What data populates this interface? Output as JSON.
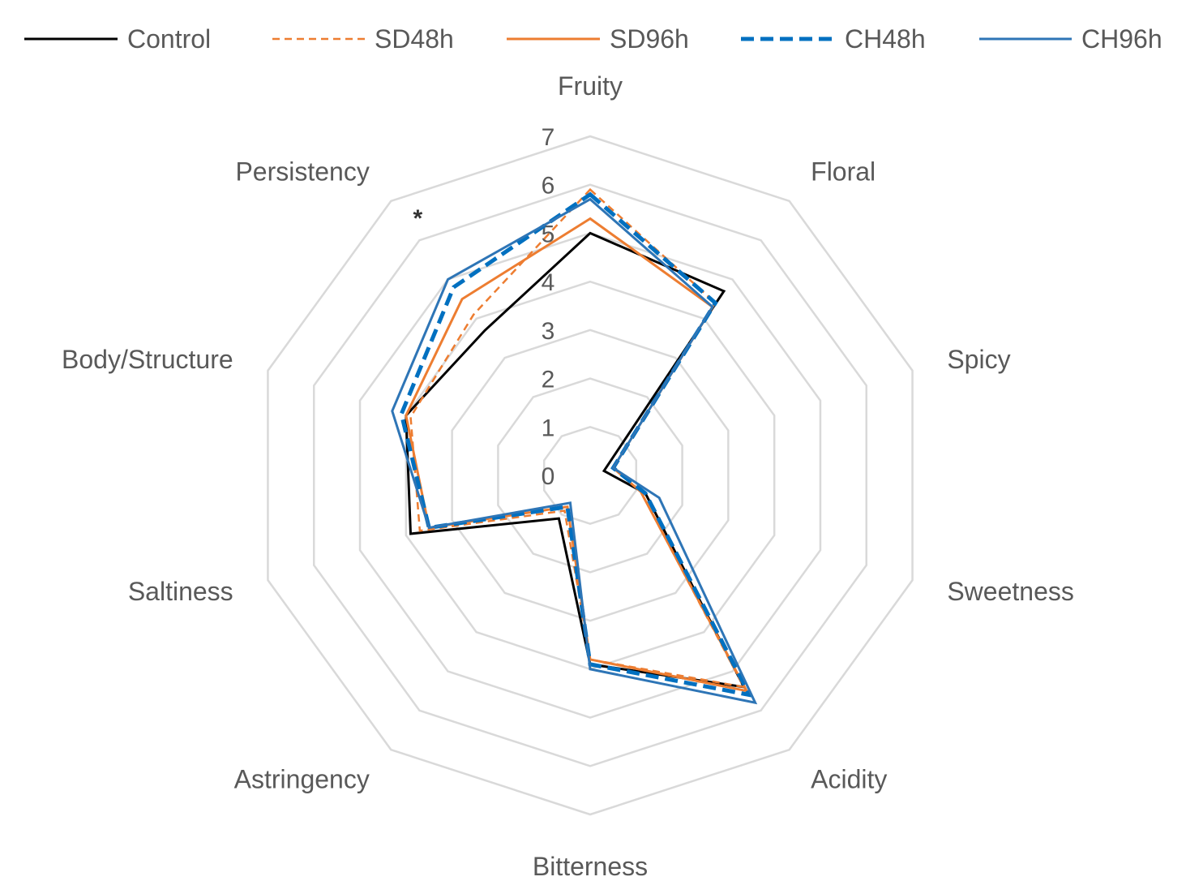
{
  "chart_data": {
    "type": "radar",
    "title": "",
    "axes": [
      "Fruity",
      "Floral",
      "Spicy",
      "Sweetness",
      "Acidity",
      "Bitterness",
      "Astringency",
      "Saltiness",
      "Body/Structure",
      "Persistency"
    ],
    "rlim": [
      0,
      7
    ],
    "ticks": [
      "0",
      "1",
      "2",
      "3",
      "4",
      "5",
      "6",
      "7"
    ],
    "grid": true,
    "legend_position": "top",
    "series": [
      {
        "name": "Control",
        "color": "#000000",
        "dash": "solid",
        "values": [
          5.0,
          4.7,
          0.3,
          1.2,
          5.4,
          3.9,
          1.1,
          3.9,
          4.0,
          3.7
        ]
      },
      {
        "name": "SD48h",
        "color": "#ED7D31",
        "dash": "dashed",
        "values": [
          5.9,
          4.4,
          0.5,
          1.1,
          5.4,
          3.8,
          0.9,
          3.7,
          3.9,
          4.1
        ]
      },
      {
        "name": "SD96h",
        "color": "#ED7D31",
        "dash": "solid",
        "values": [
          5.3,
          4.3,
          0.5,
          1.1,
          5.5,
          3.8,
          0.8,
          3.5,
          4.0,
          4.5
        ]
      },
      {
        "name": "CH48h",
        "color": "#0070C0",
        "dash": "bold-dashed",
        "values": [
          5.8,
          4.4,
          0.5,
          1.2,
          5.6,
          3.9,
          0.8,
          3.5,
          4.1,
          4.8
        ]
      },
      {
        "name": "CH96h",
        "color": "#2E75B6",
        "dash": "solid",
        "values": [
          5.7,
          4.3,
          0.5,
          1.5,
          5.8,
          4.0,
          0.7,
          3.5,
          4.3,
          5.0
        ]
      }
    ],
    "annotations": [
      {
        "text": "*",
        "axis": "Persistency"
      }
    ]
  }
}
